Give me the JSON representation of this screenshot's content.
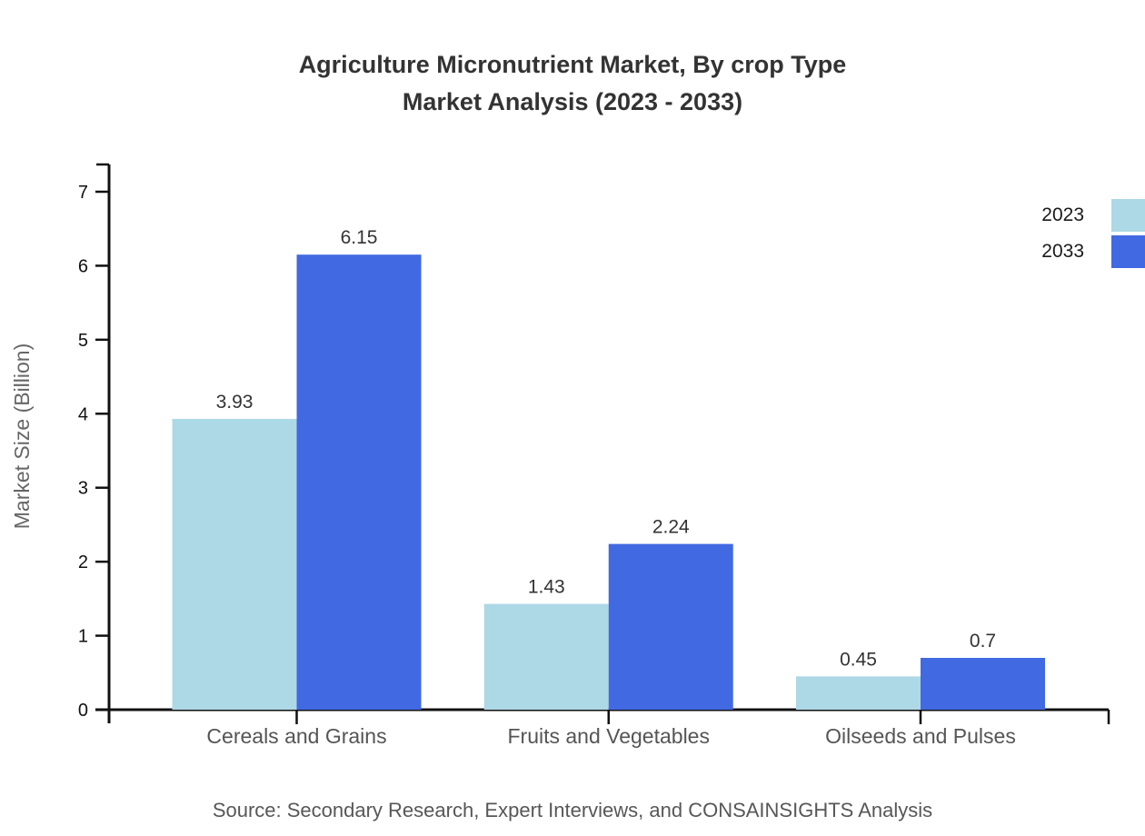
{
  "title": {
    "line1": "Agriculture Micronutrient Market, By crop Type",
    "line2": "Market Analysis (2023 - 2033)"
  },
  "source": "Source: Secondary Research, Expert Interviews, and CONSAINSIGHTS Analysis",
  "legend": {
    "position": "top-right",
    "entries": [
      {
        "label": "2023",
        "color": "#ADD8E6"
      },
      {
        "label": "2033",
        "color": "#4169E1"
      }
    ]
  },
  "chart_data": {
    "type": "bar",
    "title": "Agriculture Micronutrient Market, By crop Type\nMarket Analysis (2023 - 2033)",
    "categories": [
      "Cereals and Grains",
      "Fruits and Vegetables",
      "Oilseeds and Pulses"
    ],
    "series": [
      {
        "name": "2023",
        "color": "#ADD8E6",
        "values": [
          3.93,
          1.43,
          0.45
        ]
      },
      {
        "name": "2033",
        "color": "#4169E1",
        "values": [
          6.15,
          2.24,
          0.7
        ]
      }
    ],
    "xlabel": "",
    "ylabel": "Market Size (Billion)",
    "ylim": [
      0,
      7
    ],
    "yticks": [
      0,
      1,
      2,
      3,
      4,
      5,
      6,
      7
    ],
    "grid": false,
    "legend_position": "right-edge",
    "colors": {
      "axis": "#111111",
      "tick_label": "#111111",
      "value_label": "#333333",
      "category_label": "#555555",
      "ylabel": "#666666"
    }
  }
}
